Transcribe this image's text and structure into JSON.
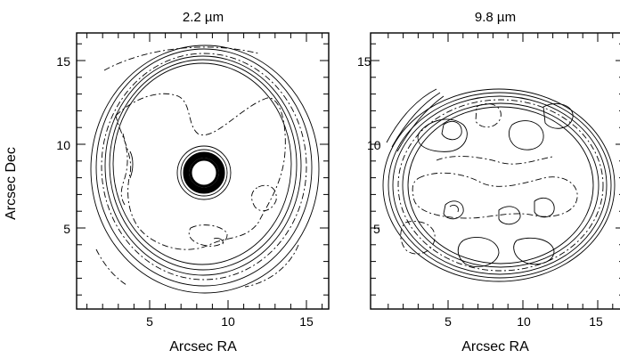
{
  "panels": [
    {
      "title": "2.2 µm",
      "xlabel": "Arcsec RA",
      "x_ticks": [
        "5",
        "10",
        "15"
      ],
      "y_ticks": [
        "5",
        "10",
        "15"
      ]
    },
    {
      "title": "9.8 µm",
      "xlabel": "Arcsec RA",
      "x_ticks": [
        "5",
        "10",
        "15"
      ],
      "y_ticks": [
        "5",
        "10",
        "15"
      ]
    }
  ],
  "ylabel": "Arcsec Dec"
}
